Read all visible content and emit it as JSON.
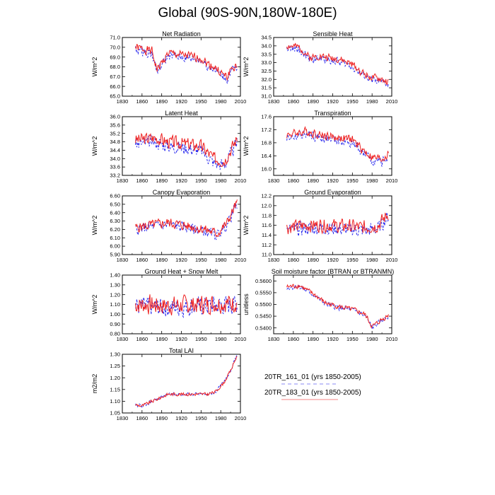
{
  "title": "Global (90S-90N,180W-180E)",
  "legend": [
    {
      "label": "20TR_161_01 (yrs 1850-2005)",
      "color": "#2a2aee",
      "dash": "dashed"
    },
    {
      "label": "20TR_183_01 (yrs 1850-2005)",
      "color": "#ee2020",
      "dash": "solid"
    }
  ],
  "chart_data": [
    {
      "type": "line",
      "title": "Net Radiation",
      "ylabel": "W/m^2",
      "xlim": [
        1830,
        2010
      ],
      "ylim": [
        65.0,
        71.0
      ],
      "xticks": [
        1830,
        1860,
        1890,
        1920,
        1950,
        1980,
        2010
      ],
      "yticks": [
        "65.0",
        "66.0",
        "67.0",
        "68.0",
        "69.0",
        "70.0",
        "71.0"
      ],
      "keypoints": [
        [
          1850,
          70.0
        ],
        [
          1875,
          69.6
        ],
        [
          1883,
          67.7
        ],
        [
          1900,
          69.4
        ],
        [
          1930,
          69.1
        ],
        [
          1950,
          68.9
        ],
        [
          1960,
          68.3
        ],
        [
          1970,
          68.0
        ],
        [
          1980,
          67.4
        ],
        [
          1990,
          66.9
        ],
        [
          1995,
          67.8
        ],
        [
          2005,
          68.0
        ]
      ],
      "amp": 0.5,
      "offset2": -0.25,
      "seed": 1
    },
    {
      "type": "line",
      "title": "Sensible Heat",
      "ylabel": "W/m^2",
      "xlim": [
        1830,
        2010
      ],
      "ylim": [
        31.0,
        34.5
      ],
      "xticks": [
        1830,
        1860,
        1890,
        1920,
        1950,
        1980,
        2010
      ],
      "yticks": [
        "31.0",
        "31.5",
        "32.0",
        "32.5",
        "33.0",
        "33.5",
        "34.0",
        "34.5"
      ],
      "keypoints": [
        [
          1850,
          34.0
        ],
        [
          1870,
          33.9
        ],
        [
          1885,
          33.3
        ],
        [
          1900,
          33.4
        ],
        [
          1930,
          33.2
        ],
        [
          1950,
          32.9
        ],
        [
          1965,
          32.4
        ],
        [
          1980,
          32.1
        ],
        [
          1995,
          32.0
        ],
        [
          2005,
          31.8
        ]
      ],
      "amp": 0.25,
      "offset2": -0.15,
      "seed": 2
    },
    {
      "type": "line",
      "title": "Latent Heat",
      "ylabel": "W/m^2",
      "xlim": [
        1830,
        2010
      ],
      "ylim": [
        33.2,
        36.0
      ],
      "xticks": [
        1830,
        1860,
        1890,
        1920,
        1950,
        1980,
        2010
      ],
      "yticks": [
        "33.2",
        "33.6",
        "34.0",
        "34.4",
        "34.8",
        "35.2",
        "35.6",
        "36.0"
      ],
      "keypoints": [
        [
          1850,
          34.9
        ],
        [
          1880,
          35.0
        ],
        [
          1900,
          34.8
        ],
        [
          1930,
          34.7
        ],
        [
          1950,
          34.6
        ],
        [
          1970,
          34.0
        ],
        [
          1985,
          33.9
        ],
        [
          1995,
          34.4
        ],
        [
          2005,
          35.0
        ]
      ],
      "amp": 0.35,
      "offset2": -0.2,
      "seed": 3
    },
    {
      "type": "line",
      "title": "Transpiration",
      "ylabel": "W/m^2",
      "xlim": [
        1830,
        2010
      ],
      "ylim": [
        15.8,
        17.6
      ],
      "xticks": [
        1830,
        1860,
        1890,
        1920,
        1950,
        1980,
        2010
      ],
      "yticks": [
        "16.0",
        "16.4",
        "16.8",
        "17.2",
        "17.6"
      ],
      "keypoints": [
        [
          1850,
          17.05
        ],
        [
          1880,
          17.15
        ],
        [
          1900,
          17.05
        ],
        [
          1930,
          16.95
        ],
        [
          1950,
          16.9
        ],
        [
          1965,
          16.6
        ],
        [
          1980,
          16.35
        ],
        [
          1995,
          16.3
        ],
        [
          2005,
          16.45
        ]
      ],
      "amp": 0.15,
      "offset2": -0.1,
      "seed": 4
    },
    {
      "type": "line",
      "title": "Canopy Evaporation",
      "ylabel": "W/m^2",
      "xlim": [
        1830,
        2010
      ],
      "ylim": [
        5.9,
        6.6
      ],
      "xticks": [
        1830,
        1860,
        1890,
        1920,
        1950,
        1980,
        2010
      ],
      "yticks": [
        "5.90",
        "6.00",
        "6.10",
        "6.20",
        "6.30",
        "6.40",
        "6.50",
        "6.60"
      ],
      "keypoints": [
        [
          1850,
          6.22
        ],
        [
          1880,
          6.26
        ],
        [
          1900,
          6.28
        ],
        [
          1930,
          6.24
        ],
        [
          1955,
          6.2
        ],
        [
          1975,
          6.15
        ],
        [
          1990,
          6.28
        ],
        [
          2000,
          6.45
        ],
        [
          2005,
          6.52
        ]
      ],
      "amp": 0.07,
      "offset2": -0.02,
      "seed": 5
    },
    {
      "type": "line",
      "title": "Ground Evaporation",
      "ylabel": "W/m^2",
      "xlim": [
        1830,
        2010
      ],
      "ylim": [
        11.0,
        12.2
      ],
      "xticks": [
        1830,
        1860,
        1890,
        1920,
        1950,
        1980,
        2010
      ],
      "yticks": [
        "11.0",
        "11.2",
        "11.4",
        "11.6",
        "11.8",
        "12.0",
        "12.2"
      ],
      "keypoints": [
        [
          1850,
          11.55
        ],
        [
          1880,
          11.6
        ],
        [
          1910,
          11.6
        ],
        [
          1940,
          11.58
        ],
        [
          1970,
          11.55
        ],
        [
          1990,
          11.6
        ],
        [
          2005,
          11.85
        ]
      ],
      "amp": 0.16,
      "offset2": -0.06,
      "seed": 6
    },
    {
      "type": "line",
      "title": "Ground Heat + Snow Melt",
      "ylabel": "W/m^2",
      "xlim": [
        1830,
        2010
      ],
      "ylim": [
        0.8,
        1.4
      ],
      "xticks": [
        1830,
        1860,
        1890,
        1920,
        1950,
        1980,
        2010
      ],
      "yticks": [
        "0.80",
        "0.90",
        "1.00",
        "1.10",
        "1.20",
        "1.30",
        "1.40"
      ],
      "keypoints": [
        [
          1850,
          1.1
        ],
        [
          1900,
          1.09
        ],
        [
          1950,
          1.1
        ],
        [
          2005,
          1.12
        ]
      ],
      "amp": 0.11,
      "offset2": -0.02,
      "seed": 7
    },
    {
      "type": "line",
      "title": "Soil moisture factor (BTRAN or BTRANMN)",
      "ylabel": "unitless",
      "xlim": [
        1830,
        2010
      ],
      "ylim": [
        0.5375,
        0.5625
      ],
      "xticks": [
        1830,
        1860,
        1890,
        1920,
        1950,
        1980,
        2010
      ],
      "yticks": [
        "0.5400",
        "0.5450",
        "0.5500",
        "0.5550",
        "0.5600"
      ],
      "keypoints": [
        [
          1850,
          0.5575
        ],
        [
          1870,
          0.558
        ],
        [
          1890,
          0.5545
        ],
        [
          1910,
          0.5505
        ],
        [
          1930,
          0.549
        ],
        [
          1955,
          0.5475
        ],
        [
          1970,
          0.5455
        ],
        [
          1980,
          0.5405
        ],
        [
          1995,
          0.5435
        ],
        [
          2005,
          0.5455
        ]
      ],
      "amp": 0.0012,
      "offset2": -0.0004,
      "seed": 8
    },
    {
      "type": "line",
      "title": "Total LAI",
      "ylabel": "m2/m2",
      "xlim": [
        1830,
        2010
      ],
      "ylim": [
        1.05,
        1.3
      ],
      "xticks": [
        1830,
        1860,
        1890,
        1920,
        1950,
        1980,
        2010
      ],
      "yticks": [
        "1.05",
        "1.10",
        "1.15",
        "1.20",
        "1.25",
        "1.30"
      ],
      "keypoints": [
        [
          1850,
          1.085
        ],
        [
          1860,
          1.08
        ],
        [
          1880,
          1.105
        ],
        [
          1900,
          1.13
        ],
        [
          1930,
          1.13
        ],
        [
          1960,
          1.13
        ],
        [
          1972,
          1.14
        ],
        [
          1985,
          1.18
        ],
        [
          1995,
          1.23
        ],
        [
          2005,
          1.295
        ]
      ],
      "amp": 0.008,
      "offset2": 0.0,
      "seed": 9
    }
  ]
}
